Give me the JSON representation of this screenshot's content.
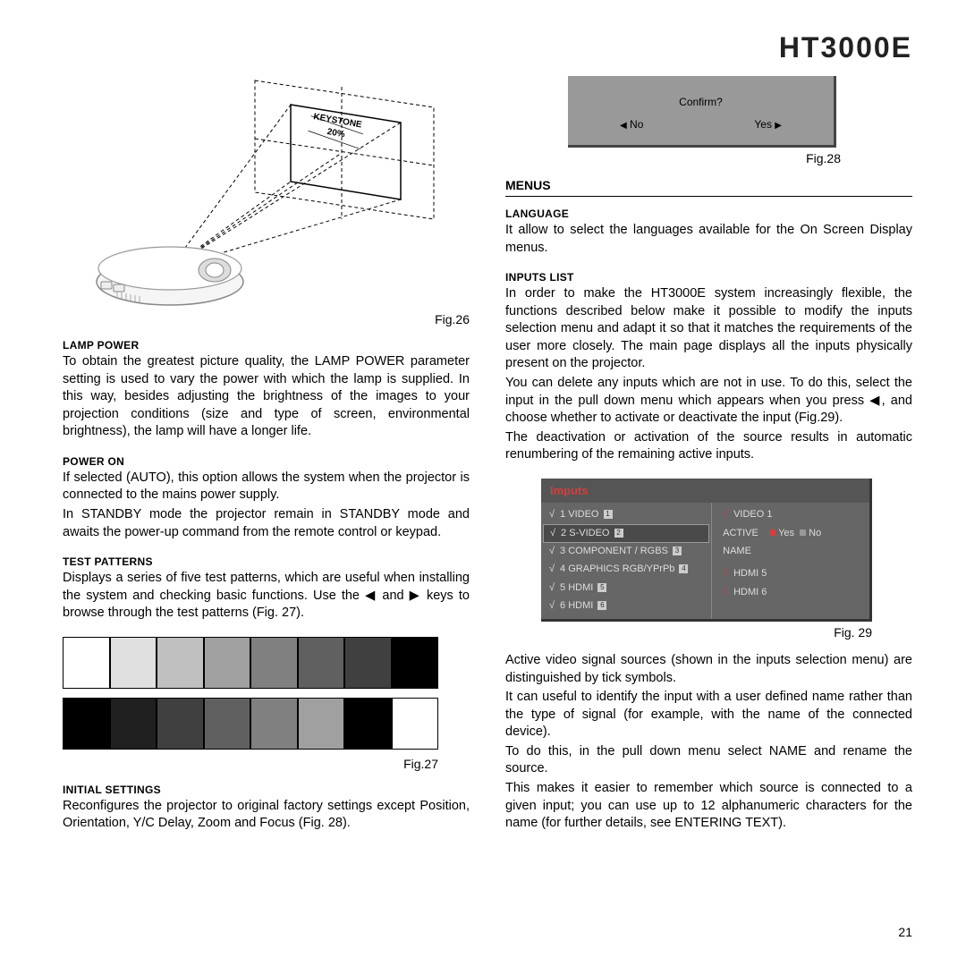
{
  "header": {
    "model": "HT3000E"
  },
  "pageNumber": "21",
  "left": {
    "fig26_caption": "Fig.26",
    "lampPower": {
      "title": "LAMP POWER",
      "text": "To obtain the greatest picture quality, the LAMP POWER parameter setting is used to vary the power with which the lamp is supplied. In this way, besides adjusting the brightness of the images to your projection conditions (size and type of screen, environmental brightness), the lamp will have a longer life."
    },
    "powerOn": {
      "title": "POWER ON",
      "text1": "If selected (AUTO), this option allows the system when the projector is connected to the mains power supply.",
      "text2": "In STANDBY mode the projector remain in STANDBY mode and awaits the power-up command from the remote control or keypad."
    },
    "testPatterns": {
      "title": "TEST PATTERNS",
      "text": "Displays a series of five test patterns, which are useful when installing the system and checking basic functions. Use the ◀ and ▶ keys to browse through the test patterns (Fig. 27)."
    },
    "fig27": {
      "caption": "Fig.27",
      "row1": [
        "#ffffff",
        "#e0e0e0",
        "#c0c0c0",
        "#a0a0a0",
        "#808080",
        "#606060",
        "#404040",
        "#000000"
      ],
      "row2": [
        "#000000",
        "#202020",
        "#404040",
        "#606060",
        "#808080",
        "#a0a0a0",
        "#000000",
        "#ffffff"
      ]
    },
    "initialSettings": {
      "title": "INITIAL SETTINGS",
      "text": "Reconfigures the projector to original factory settings except Position, Orientation, Y/C Delay, Zoom and Focus (Fig. 28)."
    }
  },
  "right": {
    "fig28": {
      "confirm": "Confirm?",
      "no": "No",
      "yes": "Yes",
      "caption": "Fig.28"
    },
    "menus": {
      "title": "MENUS"
    },
    "language": {
      "title": "LANGUAGE",
      "text": "It allow to select the languages available for the On Screen Display menus."
    },
    "inputsList": {
      "title": "INPUTS LIST",
      "text1": "In order to make the HT3000E system increasingly flexible, the functions described below make it possible to modify the inputs selection menu and adapt it so that it matches the requirements of the user more closely. The main page displays all the inputs physically present on the projector.",
      "text2": "You can delete any inputs which are not in use. To do this, select the input in the pull down menu which appears when you press ◀, and choose whether to activate or deactivate the input (Fig.29).",
      "text3": "The deactivation or activation of the source results in automatic renumbering of the remaining active inputs."
    },
    "fig29": {
      "header": "Imputs",
      "caption": "Fig. 29",
      "leftItems": [
        {
          "c": "√",
          "n": "1",
          "l": "VIDEO",
          "b": "1",
          "sel": false
        },
        {
          "c": "√",
          "n": "2",
          "l": "S-VIDEO",
          "b": "2",
          "sel": true
        },
        {
          "c": "√",
          "n": "3",
          "l": "COMPONENT / RGBS",
          "b": "3",
          "sel": false
        },
        {
          "c": "√",
          "n": "4",
          "l": "GRAPHICS RGB/YPrPb",
          "b": "4",
          "sel": false
        },
        {
          "c": "√",
          "n": "5",
          "l": "HDMI",
          "b": "5",
          "sel": false
        },
        {
          "c": "√",
          "n": "6",
          "l": "HDMI",
          "b": "6",
          "sel": false
        }
      ],
      "rightItems": {
        "video1": "VIDEO 1",
        "active": "ACTIVE",
        "yes": "Yes",
        "no": "No",
        "name": "NAME",
        "hdmi5": "HDMI 5",
        "hdmi6": "HDMI 6"
      }
    },
    "afterFig29": {
      "p1": "Active video signal sources (shown in the inputs selection menu) are distinguished by tick symbols.",
      "p2": "It can useful to identify the input with a user defined name rather than the type of signal (for example, with the name of the connected device).",
      "p3": "To do this, in the pull down menu select NAME and rename the source.",
      "p4": "This makes it easier to remember which source is connected to a given input; you can use up to 12 alphanumeric characters for the name (for further details, see  ENTERING TEXT)."
    }
  }
}
